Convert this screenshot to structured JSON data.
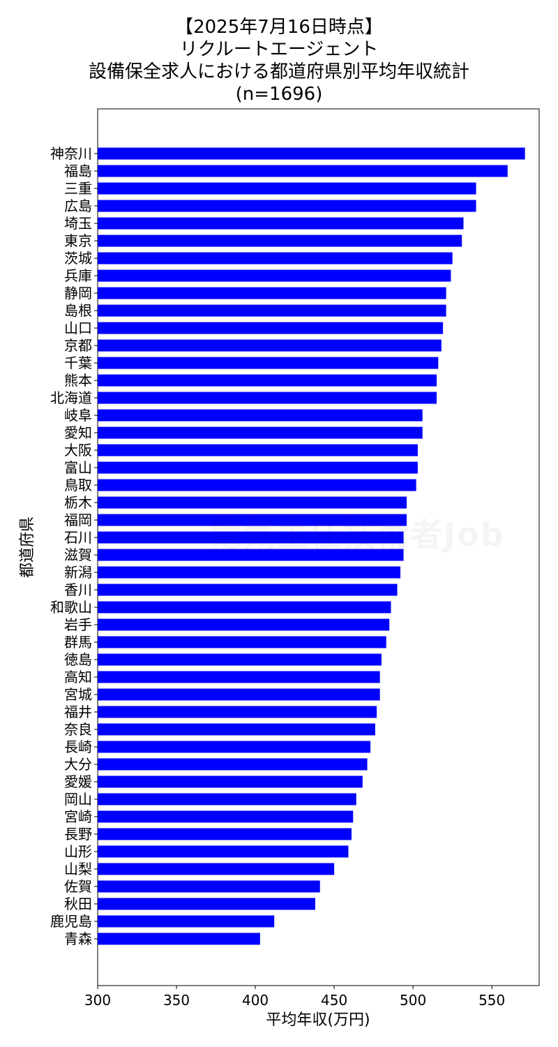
{
  "chart_data": {
    "type": "bar",
    "orientation": "horizontal",
    "title_lines": [
      "【2025年7月16日時点】",
      "リクルートエージェント",
      "設備保全求人における都道府県別平均年収統計",
      "(n=1696)"
    ],
    "xlabel": "平均年収(万円)",
    "ylabel": "都道府県",
    "xlim": [
      300,
      580
    ],
    "xticks": [
      300,
      350,
      400,
      450,
      500,
      550
    ],
    "grid": false,
    "bar_color": "#0000ff",
    "categories": [
      "神奈川",
      "福島",
      "三重",
      "広島",
      "埼玉",
      "東京",
      "茨城",
      "兵庫",
      "静岡",
      "島根",
      "山口",
      "京都",
      "千葉",
      "熊本",
      "北海道",
      "岐阜",
      "愛知",
      "大阪",
      "富山",
      "鳥取",
      "栃木",
      "福岡",
      "石川",
      "滋賀",
      "新潟",
      "香川",
      "和歌山",
      "岩手",
      "群馬",
      "徳島",
      "高知",
      "宮城",
      "福井",
      "奈良",
      "長崎",
      "大分",
      "愛媛",
      "岡山",
      "宮崎",
      "長野",
      "山形",
      "山梨",
      "佐賀",
      "秋田",
      "鹿児島",
      "青森"
    ],
    "values": [
      571,
      560,
      540,
      540,
      532,
      531,
      525,
      524,
      521,
      521,
      519,
      518,
      516,
      515,
      515,
      506,
      506,
      503,
      503,
      502,
      496,
      496,
      494,
      494,
      492,
      490,
      486,
      485,
      483,
      480,
      479,
      479,
      477,
      476,
      473,
      471,
      468,
      464,
      462,
      461,
      459,
      450,
      441,
      438,
      412,
      403
    ]
  },
  "watermark_text": "電気主任技術者Job"
}
